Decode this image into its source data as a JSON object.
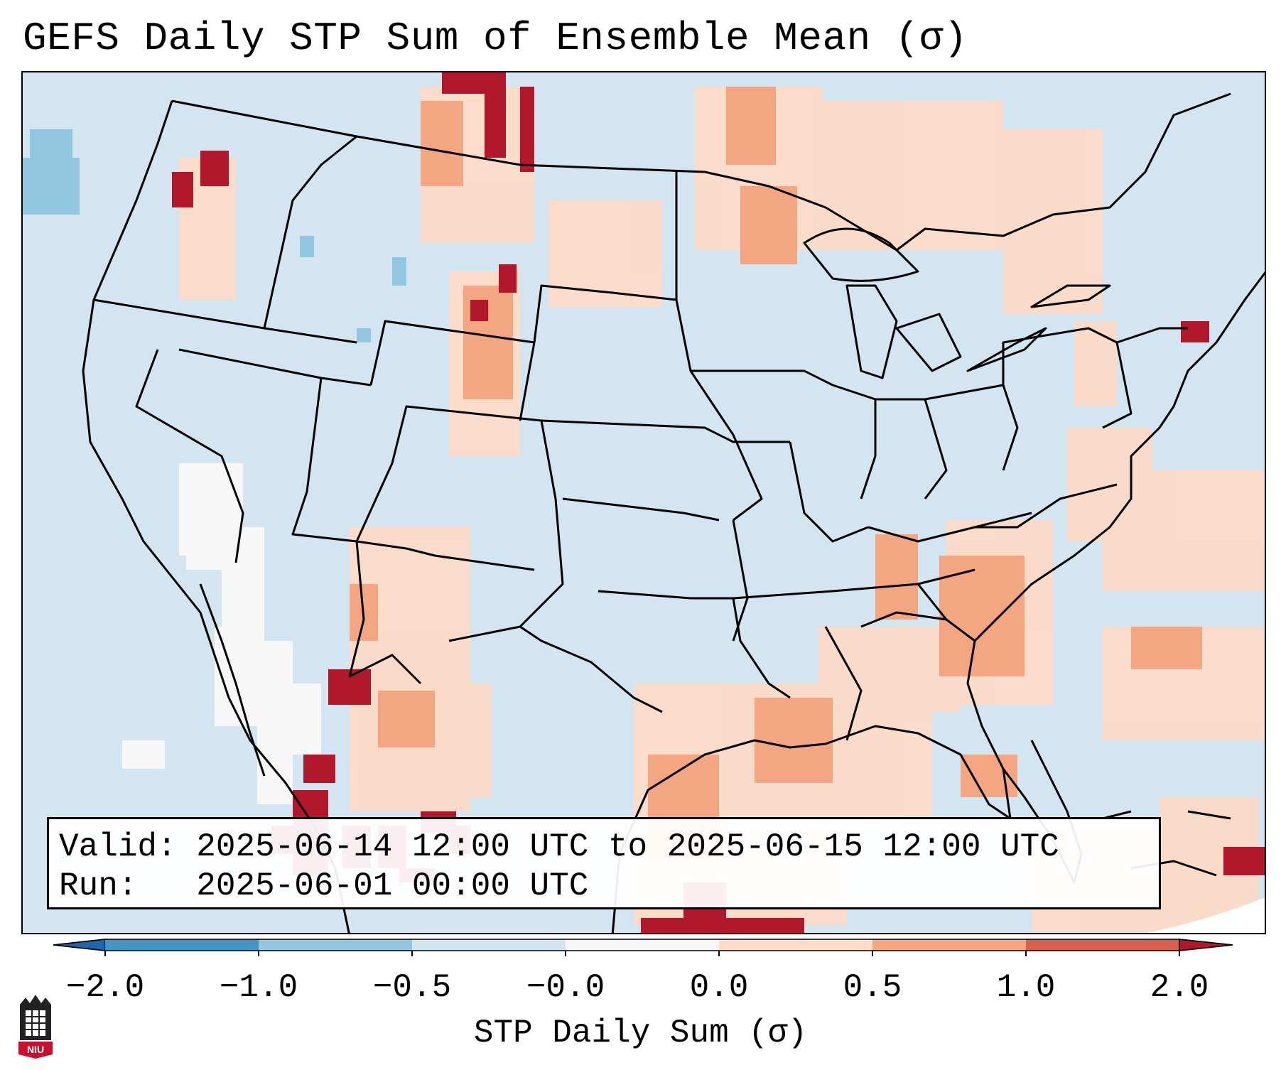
{
  "title": "GEFS Daily STP Sum of Ensemble Mean (σ)",
  "info_box": {
    "valid_label": "Valid:",
    "valid_value": "2025-06-14 12:00 UTC to 2025-06-15 12:00 UTC",
    "run_label": "Run:",
    "run_value": "2025-06-01 00:00 UTC"
  },
  "colorbar": {
    "label": "STP Daily Sum (σ)",
    "ticks": [
      "−2.0",
      "−1.0",
      "−0.5",
      "−0.0",
      "0.0",
      "0.5",
      "1.0",
      "2.0"
    ],
    "colors": [
      "#4393c3",
      "#92c5de",
      "#d1e5f0",
      "#f7f7f7",
      "#fddbc7",
      "#f4a582",
      "#d6604d"
    ],
    "under_color": "#2166ac",
    "over_color": "#b2182b"
  },
  "logo": {
    "icon": "niu-logo-icon",
    "text": "NIU"
  }
}
